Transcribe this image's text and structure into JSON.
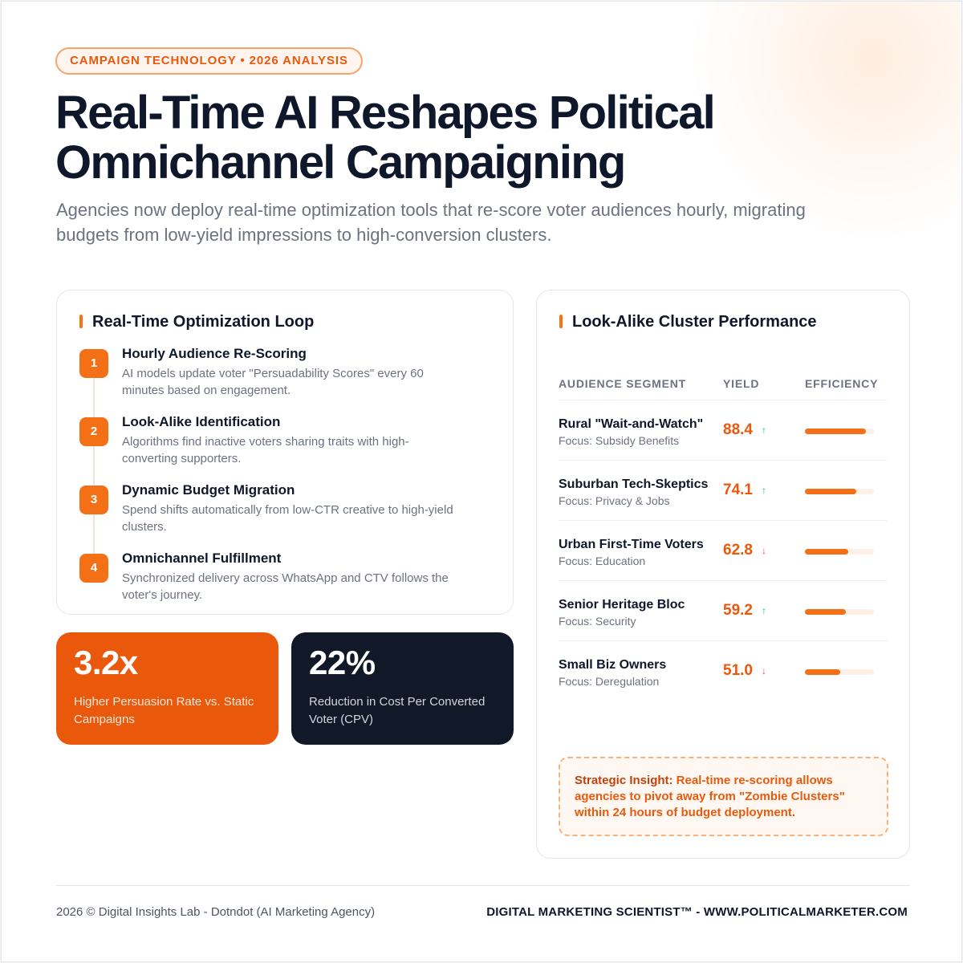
{
  "header": {
    "tag": "CAMPAIGN TECHNOLOGY • 2026 ANALYSIS",
    "title_line1": "Real-Time AI Reshapes Political",
    "title_line2": "Omnichannel Campaigning",
    "subtitle": "Agencies now deploy real-time optimization tools that re-score voter audiences hourly, migrating budgets from low-yield impressions to high-conversion clusters."
  },
  "loop": {
    "title": "Real-Time Optimization Loop",
    "steps": [
      {
        "num": "1",
        "title": "Hourly Audience Re-Scoring",
        "desc": "AI models update voter \"Persuadability Scores\" every 60 minutes based on engagement."
      },
      {
        "num": "2",
        "title": "Look-Alike Identification",
        "desc": "Algorithms find inactive voters sharing traits with high-converting supporters."
      },
      {
        "num": "3",
        "title": "Dynamic Budget Migration",
        "desc": "Spend shifts automatically from low-CTR creative to high-yield clusters."
      },
      {
        "num": "4",
        "title": "Omnichannel Fulfillment",
        "desc": "Synchronized delivery across WhatsApp and CTV follows the voter's journey."
      }
    ]
  },
  "stats": [
    {
      "value": "3.2x",
      "label": "Higher Persuasion Rate vs. Static Campaigns"
    },
    {
      "value": "22%",
      "label": "Reduction in Cost Per Converted Voter (CPV)"
    }
  ],
  "performance": {
    "title": "Look-Alike Cluster Performance",
    "headers": {
      "segment": "AUDIENCE SEGMENT",
      "yield": "YIELD",
      "efficiency": "EFFICIENCY"
    },
    "rows": [
      {
        "name": "Rural \"Wait-and-Watch\"",
        "focus": "Focus: Subsidy Benefits",
        "yield": "88.4",
        "trend": "up",
        "arrow": "↑",
        "efficiency": 0.884
      },
      {
        "name": "Suburban Tech-Skeptics",
        "focus": "Focus: Privacy & Jobs",
        "yield": "74.1",
        "trend": "up",
        "arrow": "↑",
        "efficiency": 0.741
      },
      {
        "name": "Urban First-Time Voters",
        "focus": "Focus: Education",
        "yield": "62.8",
        "trend": "down",
        "arrow": "↓",
        "efficiency": 0.628
      },
      {
        "name": "Senior Heritage Bloc",
        "focus": "Focus: Security",
        "yield": "59.2",
        "trend": "up",
        "arrow": "↑",
        "efficiency": 0.592
      },
      {
        "name": "Small Biz Owners",
        "focus": "Focus: Deregulation",
        "yield": "51.0",
        "trend": "down",
        "arrow": "↓",
        "efficiency": 0.51
      }
    ],
    "insight_label": "Strategic Insight:",
    "insight_text": " Real-time re-scoring allows agencies to pivot away from \"Zombie Clusters\" within 24 hours of budget deployment."
  },
  "footer": {
    "left": "2026 © Digital Insights Lab - Dotndot (AI Marketing Agency)",
    "right": "DIGITAL MARKETING SCIENTIST™ - WWW.POLITICALMARKETER.COM"
  },
  "colors": {
    "accent": "#ea580c",
    "dark": "#111827",
    "up": "#10b981",
    "down": "#ef4444"
  }
}
